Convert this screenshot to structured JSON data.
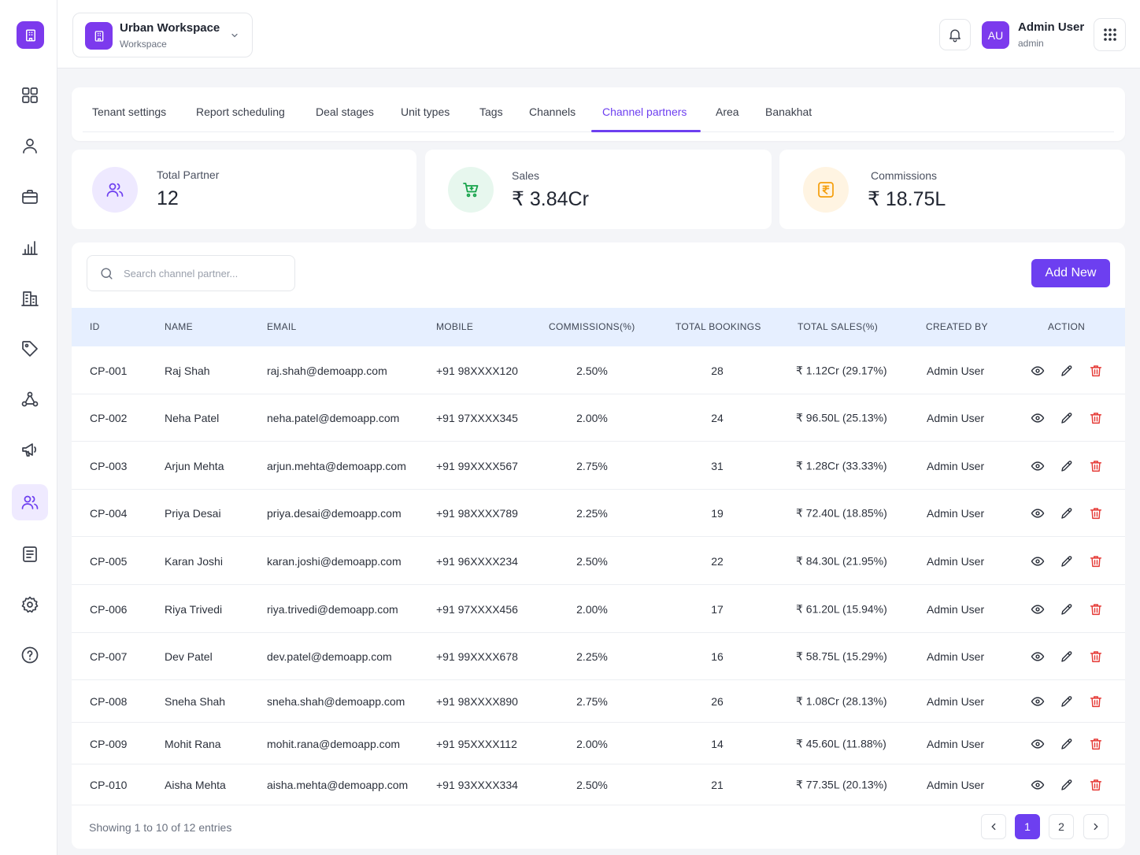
{
  "workspace": {
    "name": "Urban Workspace",
    "subtitle": "Workspace"
  },
  "user": {
    "initials": "AU",
    "name": "Admin User",
    "role": "admin"
  },
  "sidebar": {
    "items": [
      {
        "icon": "grid-icon"
      },
      {
        "icon": "user-icon"
      },
      {
        "icon": "briefcase-icon"
      },
      {
        "icon": "bar-chart-icon"
      },
      {
        "icon": "building-icon"
      },
      {
        "icon": "tag-icon"
      },
      {
        "icon": "network-icon"
      },
      {
        "icon": "megaphone-icon"
      },
      {
        "icon": "users-icon",
        "active": true
      },
      {
        "icon": "document-icon"
      },
      {
        "icon": "settings-icon"
      },
      {
        "icon": "help-icon"
      }
    ]
  },
  "tabs": [
    {
      "label": "Tenant settings"
    },
    {
      "label": "Report scheduling"
    },
    {
      "label": "Deal stages"
    },
    {
      "label": "Unit types"
    },
    {
      "label": "Tags"
    },
    {
      "label": "Channels"
    },
    {
      "label": "Channel partners",
      "active": true
    },
    {
      "label": "Area"
    },
    {
      "label": "Banakhat"
    }
  ],
  "stats": {
    "total_partner": {
      "label": "Total Partner",
      "value": "12"
    },
    "sales": {
      "label": "Sales",
      "value": "₹ 3.84Cr"
    },
    "commissions": {
      "label": "Commissions",
      "value": "₹ 18.75L"
    }
  },
  "colors": {
    "accent": "#6d3ff0",
    "sales_icon": "#16a34a",
    "commission_icon": "#f59e0b",
    "delete_icon": "#e53935"
  },
  "search": {
    "placeholder": "Search channel partner..."
  },
  "add_button": "Add New",
  "table": {
    "headers": {
      "id": "ID",
      "name": "NAME",
      "email": "EMAIL",
      "mobile": "MOBILE",
      "commissions": "COMMISSIONS(%)",
      "bookings": "TOTAL BOOKINGS",
      "sales": "TOTAL SALES(%)",
      "created_by": "CREATED BY",
      "action": "ACTION"
    },
    "rows": [
      {
        "id": "CP-001",
        "name": "Raj Shah",
        "email": "raj.shah@demoapp.com",
        "mobile": "+91 98XXXX120",
        "commission": "2.50%",
        "bookings": "28",
        "sales": "₹ 1.12Cr (29.17%)",
        "created_by": "Admin User"
      },
      {
        "id": "CP-002",
        "name": "Neha Patel",
        "email": "neha.patel@demoapp.com",
        "mobile": "+91 97XXXX345",
        "commission": "2.00%",
        "bookings": "24",
        "sales": "₹ 96.50L (25.13%)",
        "created_by": "Admin User"
      },
      {
        "id": "CP-003",
        "name": "Arjun Mehta",
        "email": "arjun.mehta@demoapp.com",
        "mobile": "+91 99XXXX567",
        "commission": "2.75%",
        "bookings": "31",
        "sales": "₹ 1.28Cr (33.33%)",
        "created_by": "Admin User"
      },
      {
        "id": "CP-004",
        "name": "Priya Desai",
        "email": "priya.desai@demoapp.com",
        "mobile": "+91 98XXXX789",
        "commission": "2.25%",
        "bookings": "19",
        "sales": "₹ 72.40L (18.85%)",
        "created_by": "Admin User"
      },
      {
        "id": "CP-005",
        "name": "Karan Joshi",
        "email": "karan.joshi@demoapp.com",
        "mobile": "+91 96XXXX234",
        "commission": "2.50%",
        "bookings": "22",
        "sales": "₹ 84.30L (21.95%)",
        "created_by": "Admin User"
      },
      {
        "id": "CP-006",
        "name": "Riya Trivedi",
        "email": "riya.trivedi@demoapp.com",
        "mobile": "+91 97XXXX456",
        "commission": "2.00%",
        "bookings": "17",
        "sales": "₹ 61.20L (15.94%)",
        "created_by": "Admin User"
      },
      {
        "id": "CP-007",
        "name": "Dev Patel",
        "email": "dev.patel@demoapp.com",
        "mobile": "+91 99XXXX678",
        "commission": "2.25%",
        "bookings": "16",
        "sales": "₹ 58.75L (15.29%)",
        "created_by": "Admin User"
      },
      {
        "id": "CP-008",
        "name": "Sneha Shah",
        "email": "sneha.shah@demoapp.com",
        "mobile": "+91 98XXXX890",
        "commission": "2.75%",
        "bookings": "26",
        "sales": "₹ 1.08Cr (28.13%)",
        "created_by": "Admin User"
      },
      {
        "id": "CP-009",
        "name": "Mohit Rana",
        "email": "mohit.rana@demoapp.com",
        "mobile": "+91 95XXXX112",
        "commission": "2.00%",
        "bookings": "14",
        "sales": "₹ 45.60L (11.88%)",
        "created_by": "Admin User"
      },
      {
        "id": "CP-010",
        "name": "Aisha Mehta",
        "email": "aisha.mehta@demoapp.com",
        "mobile": "+91 93XXXX334",
        "commission": "2.50%",
        "bookings": "21",
        "sales": "₹ 77.35L (20.13%)",
        "created_by": "Admin User"
      }
    ],
    "row_actions": [
      "eye-icon",
      "pencil-icon",
      "trash-icon"
    ]
  },
  "pagination": {
    "summary": "Showing 1 to 10 of 12 entries",
    "pages": [
      "1",
      "2"
    ],
    "current": "1"
  }
}
